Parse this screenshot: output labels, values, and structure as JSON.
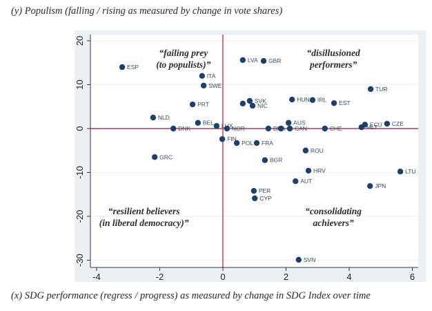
{
  "chart_data": {
    "type": "scatter",
    "title": "",
    "ylabel": "(y) Populism (falling / rising as measured by change in vote shares)",
    "xlabel": "(x) SDG performance (regress / progress) as measured by change in SDG Index over time",
    "xlim": [
      -4.2,
      6.2
    ],
    "ylim": [
      -31.5,
      21
    ],
    "xticks": [
      -4,
      -2,
      0,
      2,
      4,
      6
    ],
    "yticks": [
      20,
      10,
      0,
      -10,
      -20,
      -30
    ],
    "grid": "horizontal",
    "reference_lines": {
      "x": 0,
      "y": 0,
      "color": "#b23a5a"
    },
    "marker_color": "#1f3f66",
    "quadrant_labels": [
      {
        "id": "top-left",
        "line1": "“failing prey",
        "line2": "(to populists)”",
        "x": -1.25,
        "y": 16.5
      },
      {
        "id": "top-right",
        "line1": "“disillusioned",
        "line2": "performers”",
        "x": 3.5,
        "y": 16.5
      },
      {
        "id": "bottom-left",
        "line1": "“resilient believers",
        "line2": "(in liberal democracy)”",
        "x": -2.5,
        "y": -19.5
      },
      {
        "id": "bottom-right",
        "line1": "“consolidating",
        "line2": "achievers”",
        "x": 3.5,
        "y": -19.5
      }
    ],
    "points": [
      {
        "label": "ESP",
        "x": -3.19,
        "y": 14.0
      },
      {
        "label": "ITA",
        "x": -0.66,
        "y": 12.0
      },
      {
        "label": "SWE",
        "x": -0.61,
        "y": 9.8
      },
      {
        "label": "PRT",
        "x": -0.96,
        "y": 5.5
      },
      {
        "label": "NLD",
        "x": -2.21,
        "y": 2.5
      },
      {
        "label": "BEL",
        "x": -0.79,
        "y": 1.3
      },
      {
        "label": "LUX",
        "x": -0.2,
        "y": 0.6
      },
      {
        "label": "DNK",
        "x": -1.57,
        "y": 0.0
      },
      {
        "label": "NOR",
        "x": 0.13,
        "y": 0.0
      },
      {
        "label": "FIN",
        "x": -0.02,
        "y": -2.4
      },
      {
        "label": "POL",
        "x": 0.44,
        "y": -3.3
      },
      {
        "label": "FRA",
        "x": 1.07,
        "y": -3.3
      },
      {
        "label": "GRC",
        "x": -2.16,
        "y": -6.5
      },
      {
        "label": "BGR",
        "x": 1.33,
        "y": -7.2
      },
      {
        "label": "LVA",
        "x": 0.63,
        "y": 15.6
      },
      {
        "label": "GBR",
        "x": 1.29,
        "y": 15.4
      },
      {
        "label": "",
        "x": 0.63,
        "y": 5.7
      },
      {
        "label": "SVK",
        "x": 0.85,
        "y": 6.3
      },
      {
        "label": "NIC",
        "x": 0.94,
        "y": 5.2
      },
      {
        "label": "HUN",
        "x": 2.19,
        "y": 6.6
      },
      {
        "label": "IRL",
        "x": 2.84,
        "y": 6.5
      },
      {
        "label": "EST",
        "x": 3.52,
        "y": 5.8
      },
      {
        "label": "TUR",
        "x": 4.68,
        "y": 9.0
      },
      {
        "label": "AUS",
        "x": 2.08,
        "y": 1.3
      },
      {
        "label": "BRA",
        "x": 1.44,
        "y": 0.0
      },
      {
        "label": "",
        "x": 1.84,
        "y": 0.0
      },
      {
        "label": "CAN",
        "x": 2.12,
        "y": 0.0
      },
      {
        "label": "CHE",
        "x": 3.23,
        "y": 0.0
      },
      {
        "label": "ECU",
        "x": 4.5,
        "y": 0.9
      },
      {
        "label": "MLT",
        "x": 4.39,
        "y": 0.3
      },
      {
        "label": "CZE",
        "x": 5.2,
        "y": 1.1
      },
      {
        "label": "ROU",
        "x": 2.62,
        "y": -5.0
      },
      {
        "label": "HRV",
        "x": 2.71,
        "y": -9.6
      },
      {
        "label": "AUT",
        "x": 2.3,
        "y": -12.0
      },
      {
        "label": "LTU",
        "x": 5.62,
        "y": -9.8
      },
      {
        "label": "JPN",
        "x": 4.66,
        "y": -13.1
      },
      {
        "label": "PER",
        "x": 0.98,
        "y": -14.2
      },
      {
        "label": "CYP",
        "x": 1.01,
        "y": -15.9
      },
      {
        "label": "SVN",
        "x": 2.4,
        "y": -29.9
      }
    ]
  }
}
